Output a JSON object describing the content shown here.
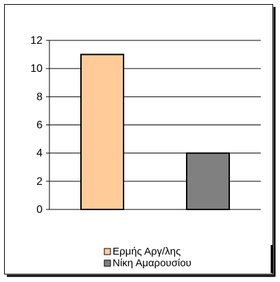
{
  "chart_data": {
    "type": "bar",
    "categories": [
      "Ερμής Αργ/λης",
      "Νίκη Αμαρουσίου"
    ],
    "values": [
      11,
      4
    ],
    "colors": [
      "#FFCC99",
      "#808080"
    ],
    "title": "",
    "xlabel": "",
    "ylabel": "",
    "ylim": [
      0,
      12
    ],
    "yticks": [
      0,
      2,
      4,
      6,
      8,
      10,
      12
    ],
    "grid": true,
    "legend": {
      "position": "bottom",
      "entries": [
        {
          "label": "Ερμής Αργ/λης",
          "color": "#FFCC99"
        },
        {
          "label": "Νίκη Αμαρουσίου",
          "color": "#808080"
        }
      ]
    }
  }
}
